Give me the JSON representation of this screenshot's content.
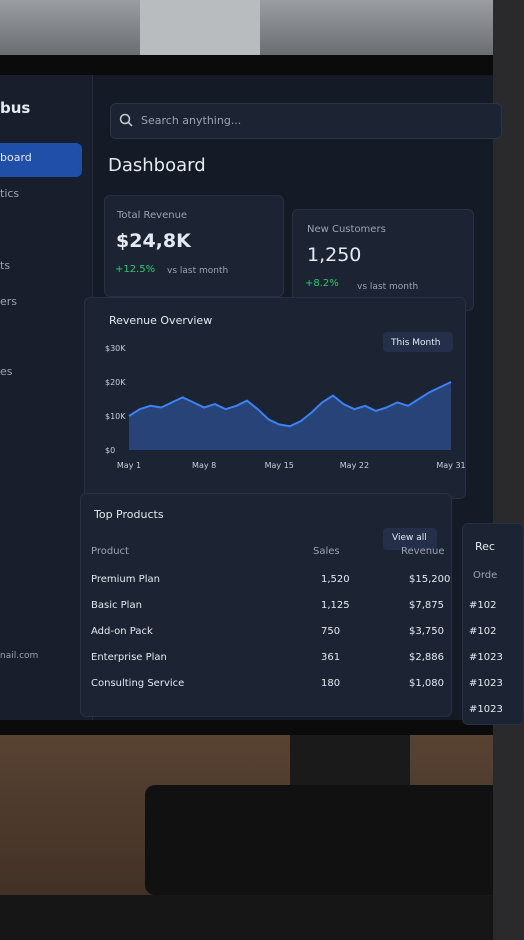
{
  "sidebar": {
    "brand": "bus",
    "items": [
      "board",
      "tics",
      "ts",
      "ers",
      "es"
    ],
    "email": "nail.com"
  },
  "search": {
    "placeholder": "Search anything..."
  },
  "header": {
    "title": "Dashboard"
  },
  "cards": [
    {
      "label": "Total Revenue",
      "value": "$24,8K",
      "change": "+12.5%",
      "note": "vs last month"
    },
    {
      "label": "New Customers",
      "value": "1,250",
      "change": "+8.2%",
      "note": "vs last month"
    }
  ],
  "chart_data": {
    "type": "line",
    "title": "Revenue Overview",
    "filter": "This Month",
    "categories": [
      "May 1",
      null,
      null,
      null,
      null,
      null,
      null,
      "May 8",
      null,
      null,
      null,
      null,
      null,
      null,
      "May 15",
      null,
      null,
      null,
      null,
      null,
      null,
      "May 22",
      null,
      null,
      null,
      null,
      null,
      null,
      null,
      null,
      "May 31"
    ],
    "values": [
      10000,
      12000,
      13000,
      12500,
      14000,
      15500,
      14000,
      12500,
      13500,
      12000,
      13000,
      14500,
      12000,
      9000,
      7500,
      7000,
      8500,
      11000,
      14000,
      16000,
      13500,
      12000,
      13000,
      11500,
      12500,
      14000,
      13000,
      15000,
      17000,
      18500,
      20000
    ],
    "color": "#3b82f6",
    "ylim": [
      0,
      30000
    ],
    "yticks": [
      {
        "value": 0,
        "label": "$0"
      },
      {
        "value": 10000,
        "label": "$10K"
      },
      {
        "value": 20000,
        "label": "$20K"
      },
      {
        "value": 30000,
        "label": "$30K"
      }
    ]
  },
  "table": {
    "title": "Top Products",
    "action": "View all",
    "columns": [
      "Product",
      "Sales",
      "Revenue"
    ],
    "rows": [
      [
        "Premium Plan",
        "1,520",
        "$15,200"
      ],
      [
        "Basic Plan",
        "1,125",
        "$7,875"
      ],
      [
        "Add-on Pack",
        "750",
        "$3,750"
      ],
      [
        "Enterprise Plan",
        "361",
        "$2,886"
      ],
      [
        "Consulting Service",
        "180",
        "$1,080"
      ]
    ]
  },
  "recent": {
    "title": "Rec",
    "column": "Orde",
    "rows": [
      "#102",
      "#102",
      "#1023",
      "#1023",
      "#1023"
    ]
  }
}
